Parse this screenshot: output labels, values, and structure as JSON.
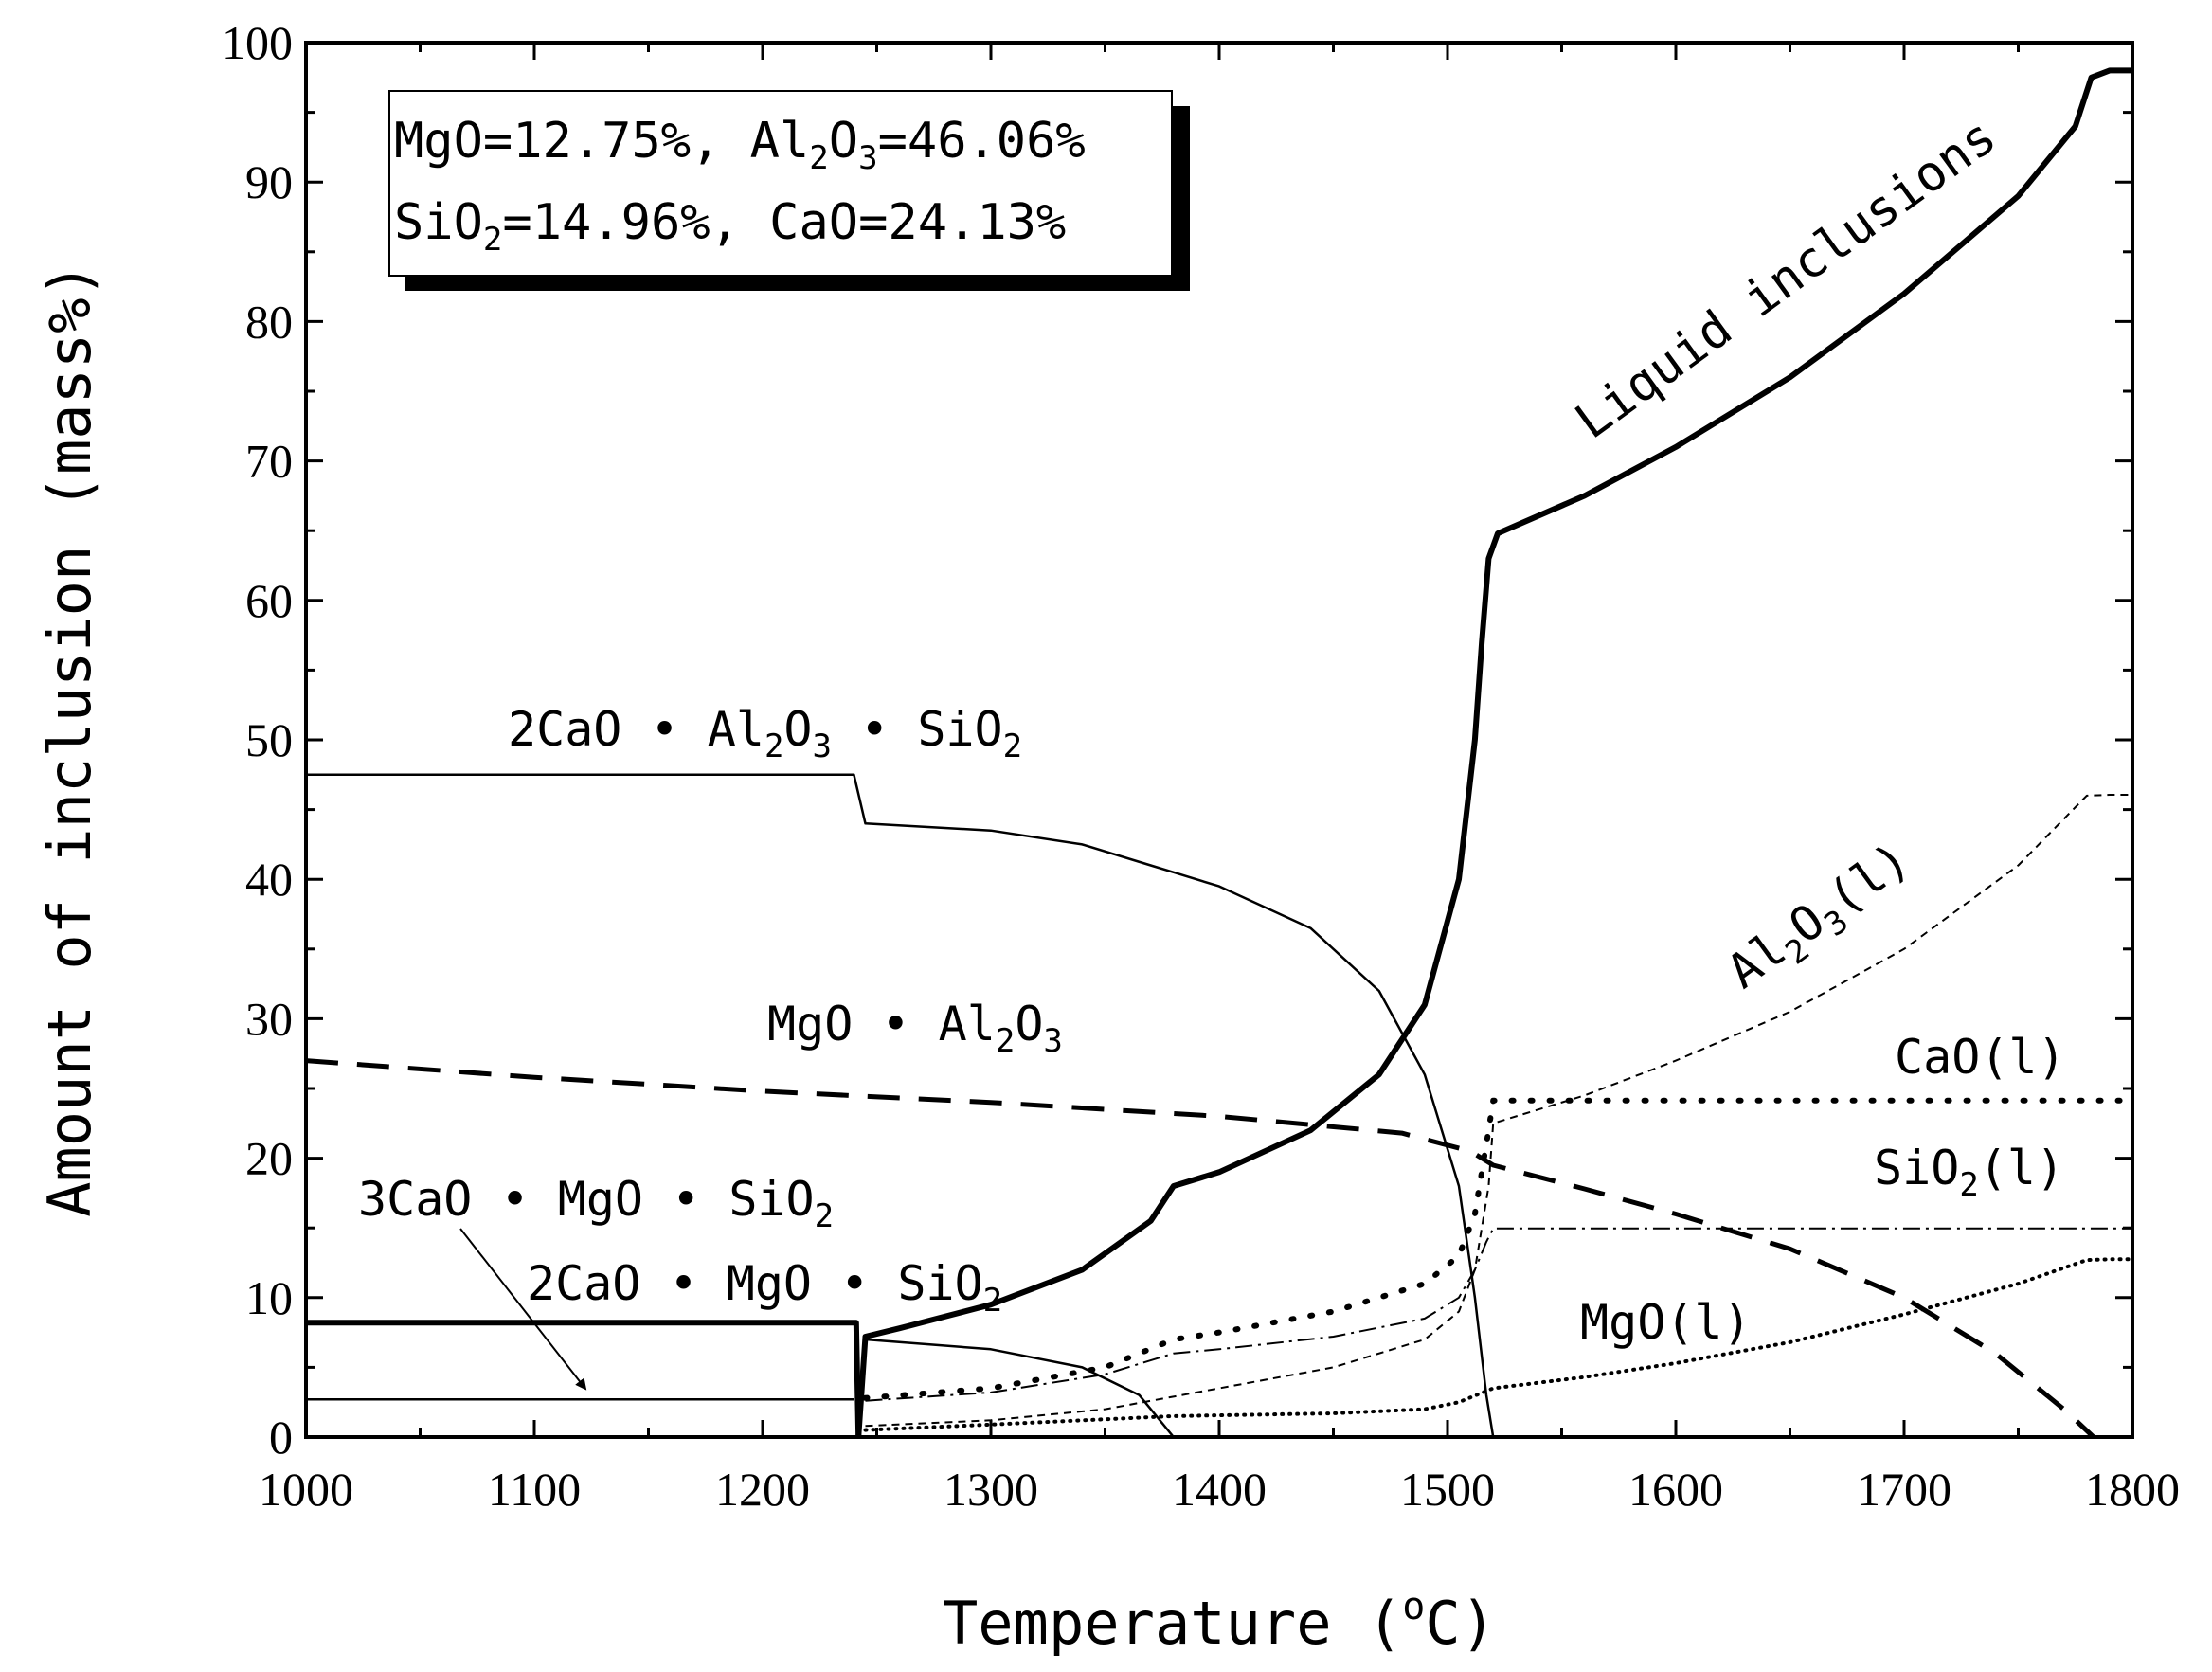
{
  "chart_data": {
    "type": "line",
    "xlabel": "Temperature (oC)",
    "xlabel_parts": {
      "pre": "Temperature (",
      "sup": "o",
      "post": "C)"
    },
    "ylabel": "Amount of inclusion (mass%)",
    "xlim": [
      1000,
      1800
    ],
    "ylim": [
      0,
      100
    ],
    "x_ticks": [
      1000,
      1100,
      1200,
      1300,
      1400,
      1500,
      1600,
      1700,
      1800
    ],
    "y_ticks": [
      0,
      10,
      20,
      30,
      40,
      50,
      60,
      70,
      80,
      90,
      100
    ],
    "grid": false,
    "composition_box": {
      "line1": {
        "a": "MgO=12.75%,  Al",
        "s1": "2",
        "b": "O",
        "s2": "3",
        "c": "=46.06%"
      },
      "line2": {
        "a": "SiO",
        "s1": "2",
        "b": "=14.96%,  CaO=24.13%"
      }
    },
    "series": [
      {
        "key": "liquid",
        "style": "thick-solid",
        "x": [
          1242,
          1245,
          1260,
          1300,
          1340,
          1370,
          1380,
          1400,
          1440,
          1470,
          1490,
          1505,
          1512,
          1515,
          1518,
          1522,
          1560,
          1600,
          1650,
          1700,
          1750,
          1775,
          1782,
          1790,
          1800
        ],
        "y": [
          0,
          7.2,
          7.8,
          9.5,
          12,
          15.5,
          18,
          19,
          22,
          26,
          31,
          40,
          50,
          57,
          63,
          64.8,
          67.5,
          71,
          76,
          82,
          89,
          94,
          97.5,
          98,
          98
        ]
      },
      {
        "key": "c2as",
        "style": "thin-solid",
        "x": [
          1000,
          1240,
          1245,
          1300,
          1340,
          1370,
          1380,
          1400,
          1440,
          1470,
          1490,
          1505,
          1512,
          1517,
          1520
        ],
        "y": [
          47.5,
          47.5,
          44,
          43.5,
          42.5,
          41,
          40.5,
          39.5,
          36.5,
          32,
          26,
          18,
          10,
          3,
          0
        ]
      },
      {
        "key": "mgal",
        "style": "dashed",
        "x": [
          1000,
          1100,
          1200,
          1300,
          1400,
          1480,
          1510,
          1520,
          1560,
          1600,
          1650,
          1700,
          1740,
          1770,
          1783
        ],
        "y": [
          27,
          25.8,
          24.8,
          24,
          23,
          21.8,
          20.5,
          19.5,
          17.8,
          16,
          13.5,
          10,
          6,
          2,
          0
        ]
      },
      {
        "key": "c3ms",
        "style": "thin-solid",
        "x": [
          1000,
          1240
        ],
        "y": [
          2.7,
          2.7
        ]
      },
      {
        "key": "c2ms",
        "style": "thick-solid",
        "x": [
          1000,
          1241,
          1242
        ],
        "y": [
          8.2,
          8.2,
          0
        ]
      },
      {
        "key": "c2ms_rest",
        "style": "thin-solid",
        "x": [
          1245,
          1300,
          1340,
          1365,
          1380
        ],
        "y": [
          7,
          6.3,
          5,
          3,
          0
        ]
      },
      {
        "key": "al2o3_l",
        "style": "short-dash",
        "x": [
          1245,
          1300,
          1350,
          1400,
          1450,
          1490,
          1505,
          1512,
          1518,
          1520,
          1560,
          1600,
          1650,
          1700,
          1750,
          1780,
          1790,
          1800
        ],
        "y": [
          0.8,
          1.2,
          2,
          3.5,
          5,
          7,
          9,
          12,
          18,
          22.5,
          24.5,
          27,
          30.5,
          35,
          41,
          46,
          46.06,
          46.06
        ]
      },
      {
        "key": "cao_l",
        "style": "dotted",
        "x": [
          1245,
          1300,
          1350,
          1380,
          1400,
          1450,
          1490,
          1505,
          1512,
          1517,
          1520,
          1540,
          1600,
          1700,
          1800
        ],
        "y": [
          2.8,
          3.5,
          5,
          7,
          7.5,
          9,
          11,
          13,
          16,
          21,
          24.13,
          24.13,
          24.13,
          24.13,
          24.13
        ]
      },
      {
        "key": "sio2_l",
        "style": "dash-dot",
        "x": [
          1245,
          1300,
          1350,
          1380,
          1400,
          1450,
          1490,
          1505,
          1512,
          1517,
          1520,
          1600,
          1700,
          1800
        ],
        "y": [
          2.6,
          3.2,
          4.5,
          6,
          6.3,
          7.2,
          8.5,
          10,
          12,
          14,
          14.96,
          14.96,
          14.96,
          14.96
        ]
      },
      {
        "key": "mgo_l",
        "style": "fine-dotted",
        "x": [
          1245,
          1300,
          1380,
          1450,
          1490,
          1505,
          1520,
          1560,
          1600,
          1650,
          1700,
          1750,
          1780,
          1790,
          1800
        ],
        "y": [
          0.5,
          0.9,
          1.5,
          1.7,
          2,
          2.5,
          3.5,
          4.3,
          5.3,
          6.8,
          8.8,
          11,
          12.7,
          12.75,
          12.75
        ]
      }
    ],
    "annotations": {
      "liquid": "Liquid inclusions",
      "c2as": {
        "a": "2CaO • Al",
        "s1": "2",
        "b": "O",
        "s2": "3",
        "c": " • SiO",
        "s3": "2"
      },
      "mgal": {
        "a": "MgO • Al",
        "s1": "2",
        "b": "O",
        "s2": "3"
      },
      "c3ms": {
        "a": "3CaO • MgO • SiO",
        "s1": "2"
      },
      "c2ms": {
        "a": "2CaO • MgO • SiO",
        "s1": "2"
      },
      "al2o3_l": {
        "a": "Al",
        "s1": "2",
        "b": "O",
        "s2": "3",
        "c": "(l)"
      },
      "cao_l": "CaO(l)",
      "sio2_l": {
        "a": "SiO",
        "s1": "2",
        "b": "(l)"
      },
      "mgo_l": "MgO(l)"
    }
  }
}
